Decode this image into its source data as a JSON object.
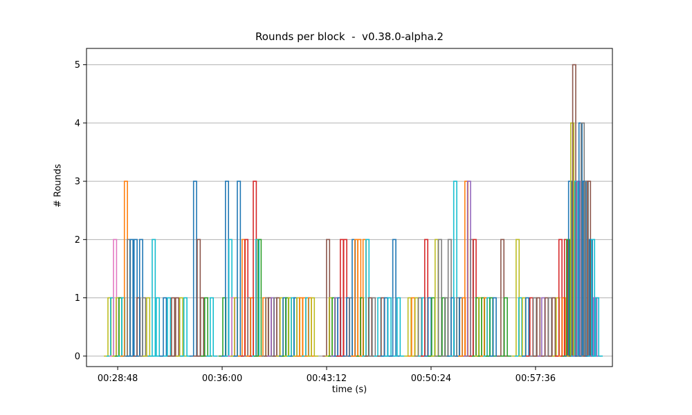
{
  "chart_data": {
    "type": "bar",
    "style": "step-outline-pulses",
    "title": "Rounds per block  -  v0.38.0-alpha.2",
    "xlabel": "time (s)",
    "ylabel": "# Rounds",
    "x_tick_format": "HH:MM:SS",
    "x_ticks": [
      {
        "value": 1728,
        "label": "00:28:48"
      },
      {
        "value": 2160,
        "label": "00:36:00"
      },
      {
        "value": 2592,
        "label": "00:43:12"
      },
      {
        "value": 3024,
        "label": "00:50:24"
      },
      {
        "value": 3456,
        "label": "00:57:36"
      }
    ],
    "y_ticks": [
      0,
      1,
      2,
      3,
      4,
      5
    ],
    "xlim": [
      1599,
      3774
    ],
    "ylim": [
      -0.18,
      5.28
    ],
    "grid": "horizontal",
    "legend": "none",
    "colors": {
      "plot_bg": "#ffffff",
      "grid": "#b0b0b0",
      "axis": "#000000",
      "baseline": "#888888"
    },
    "palette": [
      "#1f77b4",
      "#ff7f0e",
      "#2ca02c",
      "#d62728",
      "#9467bd",
      "#8c564b",
      "#e377c2",
      "#7f7f7f",
      "#bcbd22",
      "#17becf"
    ],
    "point_format": [
      "time_seconds",
      "rounds",
      "palette_color_index"
    ],
    "points": [
      [
        1694,
        1,
        8
      ],
      [
        1705,
        1,
        9
      ],
      [
        1717,
        2,
        6
      ],
      [
        1728,
        1,
        8
      ],
      [
        1739,
        1,
        2
      ],
      [
        1751,
        1,
        9
      ],
      [
        1762,
        3,
        1
      ],
      [
        1774,
        2,
        7
      ],
      [
        1785,
        2,
        0
      ],
      [
        1802,
        2,
        0
      ],
      [
        1814,
        1,
        5
      ],
      [
        1825,
        2,
        0
      ],
      [
        1837,
        1,
        7
      ],
      [
        1854,
        1,
        8
      ],
      [
        1877,
        2,
        9
      ],
      [
        1894,
        1,
        9
      ],
      [
        1923,
        1,
        0
      ],
      [
        1940,
        1,
        9
      ],
      [
        1957,
        1,
        5
      ],
      [
        1974,
        1,
        5
      ],
      [
        1991,
        1,
        8
      ],
      [
        2008,
        1,
        9
      ],
      [
        2048,
        3,
        0
      ],
      [
        2063,
        2,
        5
      ],
      [
        2077,
        1,
        5
      ],
      [
        2094,
        1,
        2
      ],
      [
        2117,
        1,
        9
      ],
      [
        2169,
        1,
        2
      ],
      [
        2180,
        3,
        0
      ],
      [
        2194,
        2,
        9
      ],
      [
        2206,
        1,
        6
      ],
      [
        2217,
        1,
        8
      ],
      [
        2229,
        3,
        0
      ],
      [
        2249,
        2,
        1
      ],
      [
        2260,
        2,
        3
      ],
      [
        2272,
        1,
        7
      ],
      [
        2283,
        1,
        1
      ],
      [
        2295,
        3,
        3
      ],
      [
        2306,
        2,
        9
      ],
      [
        2315,
        2,
        2
      ],
      [
        2335,
        1,
        1
      ],
      [
        2346,
        1,
        7
      ],
      [
        2357,
        1,
        5
      ],
      [
        2369,
        1,
        4
      ],
      [
        2380,
        1,
        7
      ],
      [
        2392,
        1,
        5
      ],
      [
        2406,
        1,
        8
      ],
      [
        2418,
        1,
        0
      ],
      [
        2429,
        1,
        2
      ],
      [
        2440,
        1,
        8
      ],
      [
        2452,
        1,
        9
      ],
      [
        2463,
        1,
        0
      ],
      [
        2475,
        1,
        8
      ],
      [
        2486,
        1,
        1
      ],
      [
        2500,
        1,
        1
      ],
      [
        2512,
        1,
        9
      ],
      [
        2523,
        1,
        1
      ],
      [
        2535,
        1,
        8
      ],
      [
        2598,
        2,
        5
      ],
      [
        2609,
        1,
        8
      ],
      [
        2621,
        1,
        2
      ],
      [
        2632,
        1,
        4
      ],
      [
        2644,
        1,
        0
      ],
      [
        2655,
        2,
        3
      ],
      [
        2669,
        2,
        3
      ],
      [
        2681,
        1,
        0
      ],
      [
        2692,
        1,
        7
      ],
      [
        2704,
        2,
        0
      ],
      [
        2715,
        2,
        1
      ],
      [
        2727,
        2,
        1
      ],
      [
        2738,
        1,
        2
      ],
      [
        2749,
        2,
        1
      ],
      [
        2761,
        2,
        9
      ],
      [
        2772,
        1,
        5
      ],
      [
        2787,
        1,
        7
      ],
      [
        2810,
        1,
        9
      ],
      [
        2824,
        1,
        5
      ],
      [
        2838,
        1,
        0
      ],
      [
        2852,
        1,
        9
      ],
      [
        2872,
        2,
        0
      ],
      [
        2890,
        1,
        9
      ],
      [
        2935,
        1,
        8
      ],
      [
        2950,
        1,
        1
      ],
      [
        2964,
        1,
        8
      ],
      [
        2978,
        1,
        7
      ],
      [
        2993,
        1,
        9
      ],
      [
        3004,
        2,
        3
      ],
      [
        3018,
        1,
        0
      ],
      [
        3033,
        1,
        2
      ],
      [
        3047,
        2,
        8
      ],
      [
        3061,
        2,
        7
      ],
      [
        3076,
        1,
        2
      ],
      [
        3087,
        1,
        7
      ],
      [
        3101,
        2,
        7
      ],
      [
        3113,
        1,
        0
      ],
      [
        3124,
        3,
        9
      ],
      [
        3136,
        1,
        7
      ],
      [
        3147,
        1,
        0
      ],
      [
        3159,
        1,
        1
      ],
      [
        3170,
        3,
        1
      ],
      [
        3181,
        3,
        4
      ],
      [
        3193,
        2,
        7
      ],
      [
        3204,
        2,
        3
      ],
      [
        3216,
        1,
        2
      ],
      [
        3227,
        1,
        8
      ],
      [
        3239,
        1,
        2
      ],
      [
        3250,
        1,
        1
      ],
      [
        3262,
        1,
        9
      ],
      [
        3273,
        1,
        2
      ],
      [
        3287,
        1,
        0
      ],
      [
        3319,
        2,
        5
      ],
      [
        3333,
        1,
        2
      ],
      [
        3382,
        2,
        8
      ],
      [
        3393,
        1,
        9
      ],
      [
        3408,
        1,
        8
      ],
      [
        3422,
        1,
        0
      ],
      [
        3439,
        1,
        3
      ],
      [
        3453,
        1,
        7
      ],
      [
        3468,
        1,
        5
      ],
      [
        3488,
        1,
        4
      ],
      [
        3502,
        1,
        5
      ],
      [
        3516,
        1,
        7
      ],
      [
        3531,
        1,
        5
      ],
      [
        3548,
        1,
        8
      ],
      [
        3559,
        2,
        3
      ],
      [
        3573,
        1,
        1
      ],
      [
        3582,
        2,
        3
      ],
      [
        3591,
        2,
        2
      ],
      [
        3599,
        3,
        0
      ],
      [
        3608,
        4,
        8
      ],
      [
        3616,
        5,
        5
      ],
      [
        3625,
        3,
        9
      ],
      [
        3633,
        3,
        4
      ],
      [
        3642,
        4,
        0
      ],
      [
        3651,
        4,
        7
      ],
      [
        3659,
        3,
        0
      ],
      [
        3668,
        3,
        7
      ],
      [
        3677,
        3,
        5
      ],
      [
        3685,
        2,
        0
      ],
      [
        3694,
        2,
        9
      ],
      [
        3703,
        1,
        4
      ],
      [
        3711,
        1,
        9
      ]
    ]
  }
}
